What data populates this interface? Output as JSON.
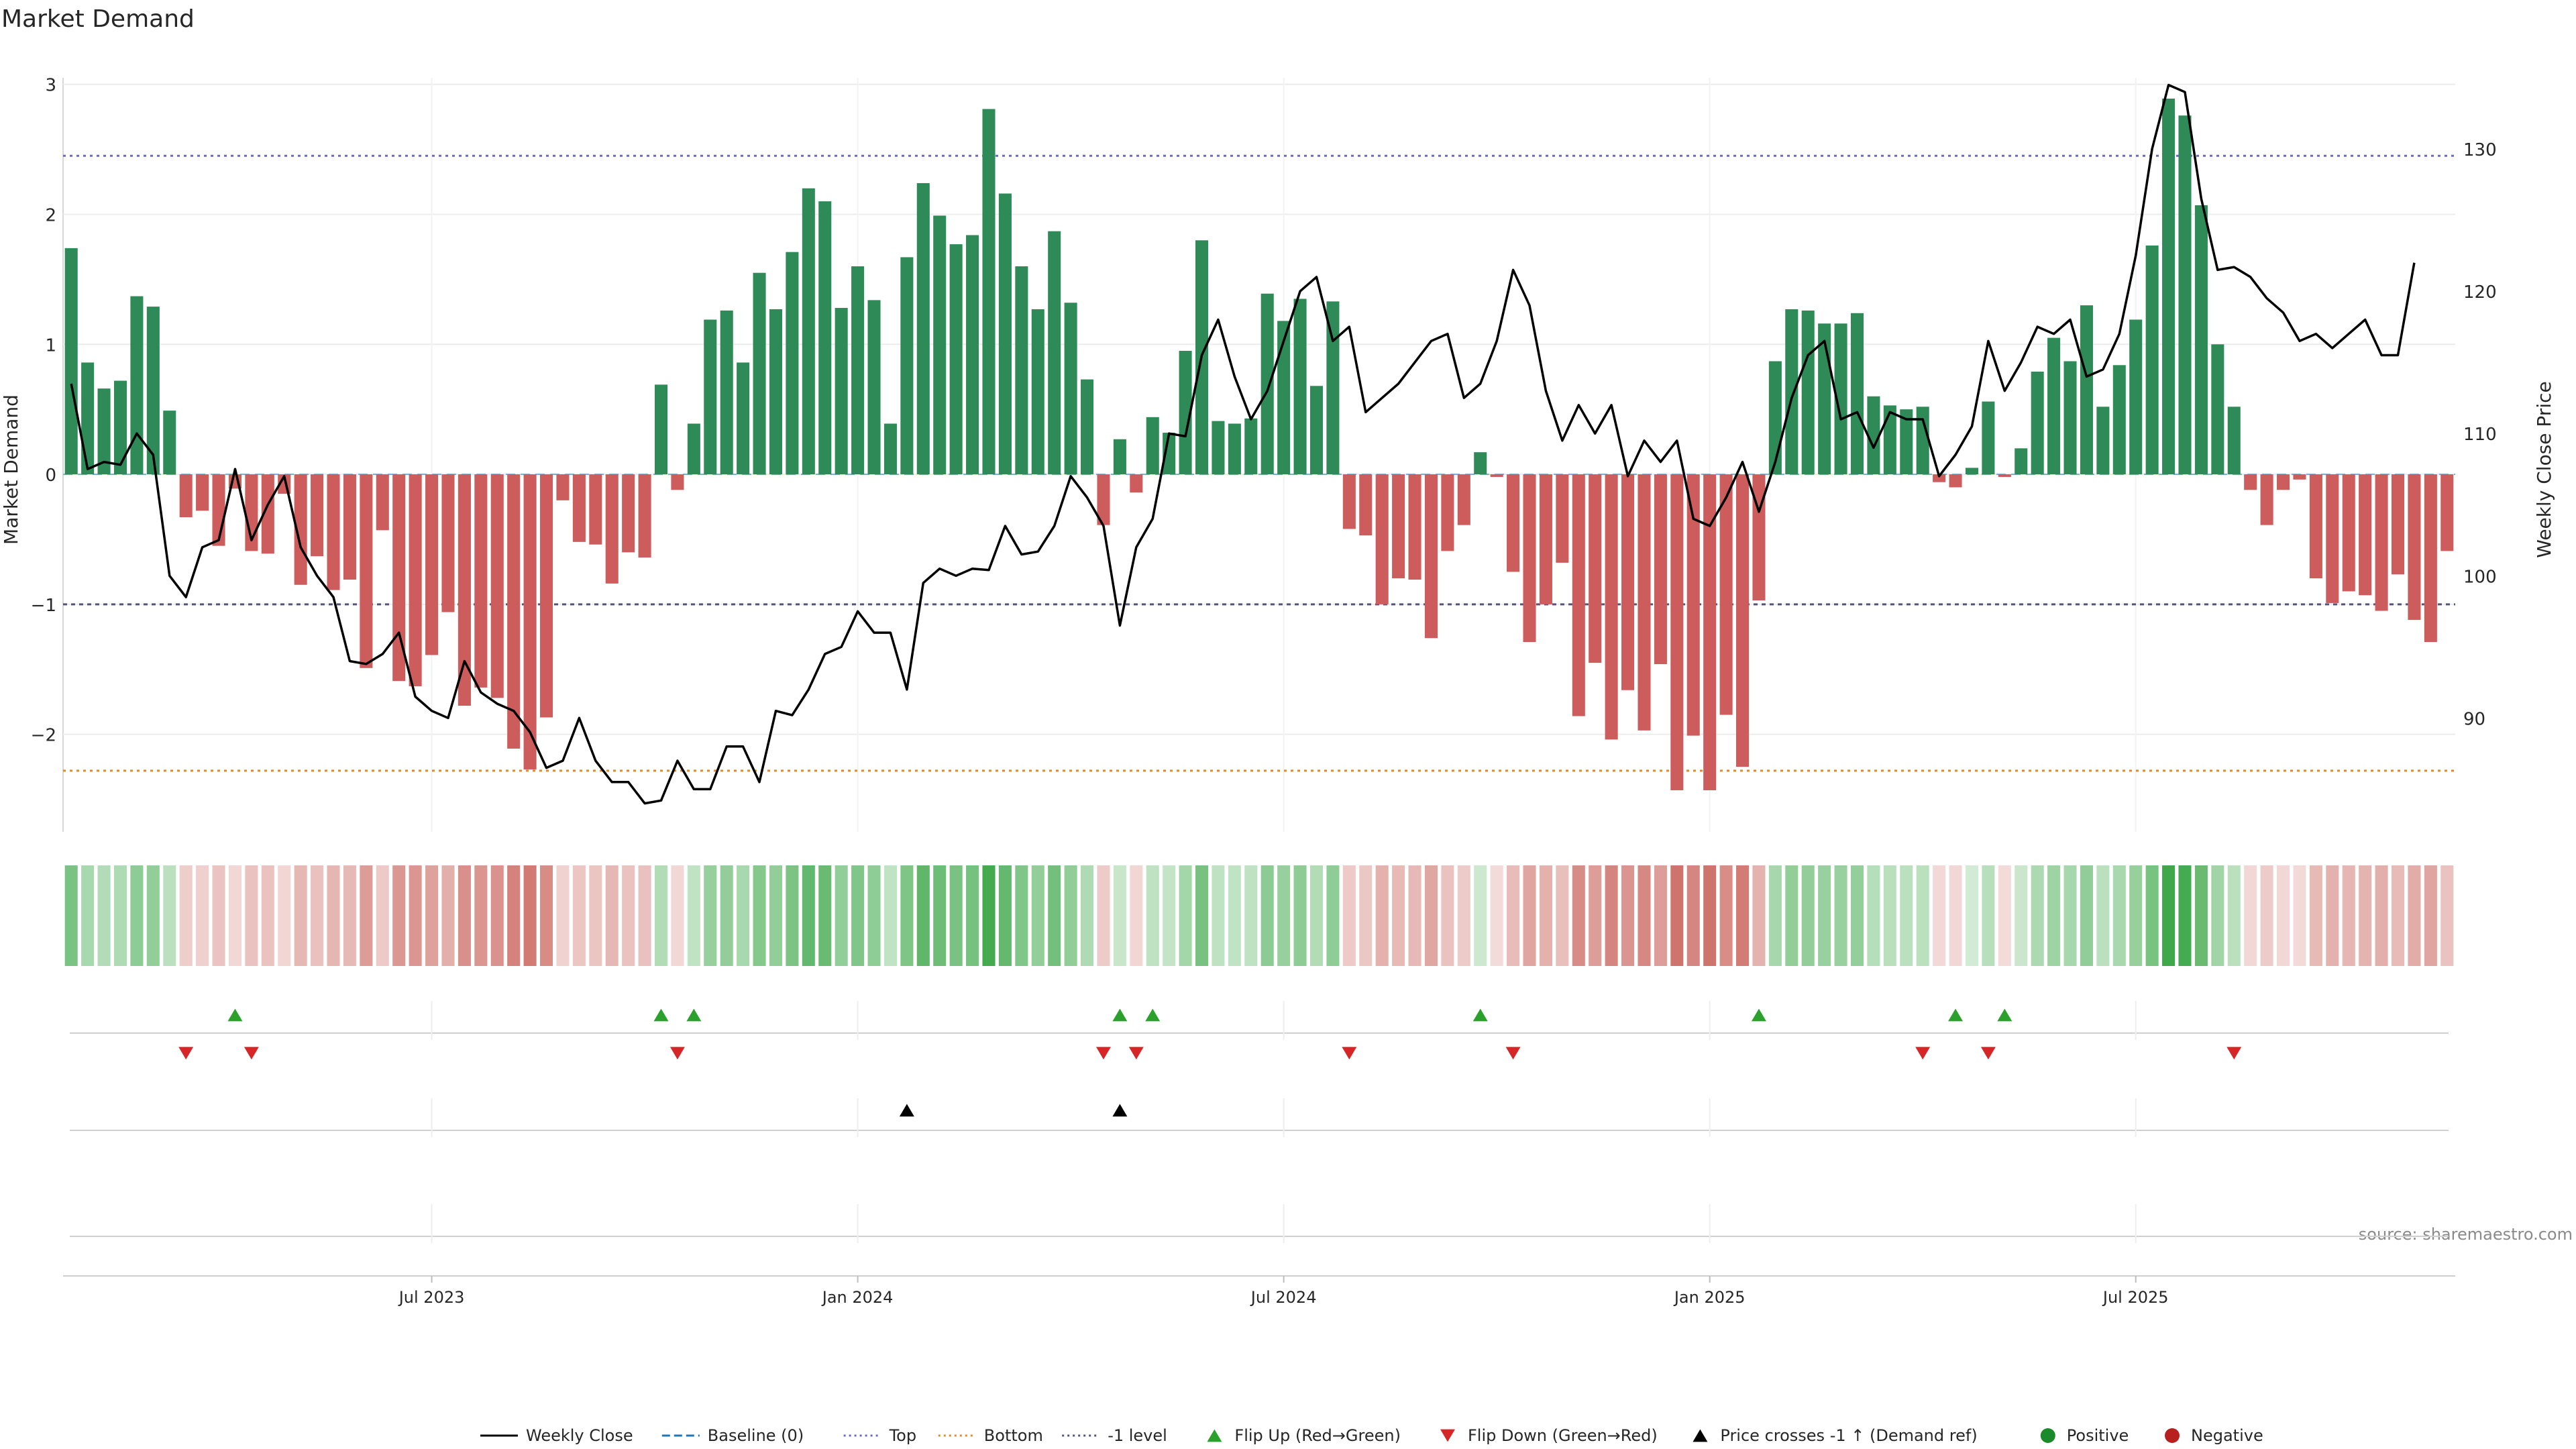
{
  "chart_data": {
    "type": "bar",
    "title": "Market Demand",
    "ylabel_left": "Market Demand",
    "ylabel_right": "Weekly Close Price",
    "source": "source: sharemaestro.com",
    "y_ticks_left": [
      {
        "value": 3,
        "label": "3"
      },
      {
        "value": 2,
        "label": "2"
      },
      {
        "value": 1,
        "label": "1"
      },
      {
        "value": 0,
        "label": "0"
      },
      {
        "value": -1,
        "label": "−1"
      },
      {
        "value": -2,
        "label": "−2"
      }
    ],
    "y_ticks_right": [
      {
        "value": 130,
        "label": "130"
      },
      {
        "value": 120,
        "label": "120"
      },
      {
        "value": 110,
        "label": "110"
      },
      {
        "value": 100,
        "label": "100"
      },
      {
        "value": 90,
        "label": "90"
      }
    ],
    "x_ticks": [
      {
        "index": 22,
        "label": "Jul 2023"
      },
      {
        "index": 48,
        "label": "Jan 2024"
      },
      {
        "index": 74,
        "label": "Jul 2024"
      },
      {
        "index": 100,
        "label": "Jan 2025"
      },
      {
        "index": 126,
        "label": "Jul 2025"
      }
    ],
    "ylim_left": [
      -2.75,
      3.05
    ],
    "ylim_right": [
      82,
      135
    ],
    "reference_lines": {
      "top": 2.45,
      "bottom": -2.28,
      "minus_one": -1.0
    },
    "demand": [
      1.74,
      0.86,
      0.66,
      0.72,
      1.37,
      1.29,
      0.49,
      -0.33,
      -0.28,
      -0.55,
      -0.11,
      -0.59,
      -0.61,
      -0.15,
      -0.85,
      -0.63,
      -0.89,
      -0.81,
      -1.49,
      -0.43,
      -1.59,
      -1.63,
      -1.39,
      -1.06,
      -1.78,
      -1.64,
      -1.72,
      -2.11,
      -2.27,
      -1.87,
      -0.2,
      -0.52,
      -0.54,
      -0.84,
      -0.6,
      -0.64,
      0.69,
      -0.12,
      0.39,
      1.19,
      1.26,
      0.86,
      1.55,
      1.27,
      1.71,
      2.2,
      2.1,
      1.28,
      1.6,
      1.34,
      0.39,
      1.67,
      2.24,
      1.99,
      1.77,
      1.84,
      2.81,
      2.16,
      1.6,
      1.27,
      1.87,
      1.32,
      0.73,
      -0.39,
      0.27,
      -0.14,
      0.44,
      0.32,
      0.95,
      1.8,
      0.41,
      0.39,
      0.43,
      1.39,
      1.18,
      1.35,
      0.68,
      1.33,
      -0.42,
      -0.47,
      -1.0,
      -0.8,
      -0.81,
      -1.26,
      -0.59,
      -0.39,
      0.17,
      -0.02,
      -0.75,
      -1.29,
      -1.0,
      -0.68,
      -1.86,
      -1.45,
      -2.04,
      -1.66,
      -1.97,
      -1.46,
      -2.43,
      -2.01,
      -2.43,
      -1.85,
      -2.25,
      -0.97,
      0.87,
      1.27,
      1.26,
      1.16,
      1.16,
      1.24,
      0.6,
      0.53,
      0.5,
      0.52,
      -0.06,
      -0.1,
      0.05,
      0.56,
      -0.02,
      0.2,
      0.79,
      1.05,
      0.87,
      1.3,
      0.52,
      0.84,
      1.19,
      1.76,
      2.89,
      2.76,
      2.07,
      1.0,
      0.52,
      -0.12,
      -0.39,
      -0.12,
      -0.04,
      -0.8,
      -0.99,
      -0.9,
      -0.93,
      -1.05,
      -0.77,
      -1.12,
      -1.29,
      -0.59
    ],
    "close": [
      113.5,
      107.5,
      108.0,
      107.8,
      110.0,
      108.5,
      100.0,
      98.5,
      102.0,
      102.5,
      107.5,
      102.5,
      105.0,
      107.0,
      102.0,
      100.0,
      98.5,
      94.0,
      93.8,
      94.5,
      96.0,
      91.5,
      90.5,
      90.0,
      94.0,
      91.8,
      91.0,
      90.5,
      89.0,
      86.5,
      87.0,
      90.0,
      87.0,
      85.5,
      85.5,
      84.0,
      84.2,
      87.0,
      85.0,
      85.0,
      88.0,
      88.0,
      85.5,
      90.5,
      90.2,
      92.0,
      94.5,
      95.0,
      97.5,
      96.0,
      96.0,
      92.0,
      99.5,
      100.5,
      100.0,
      100.5,
      100.4,
      103.5,
      101.5,
      101.7,
      103.5,
      107.0,
      105.5,
      103.5,
      96.5,
      102.0,
      104.0,
      110.0,
      109.8,
      115.5,
      118.0,
      114.0,
      111.0,
      113.0,
      116.5,
      120.0,
      121.0,
      116.5,
      117.5,
      111.5,
      112.5,
      113.5,
      115.0,
      116.5,
      117.0,
      112.5,
      113.5,
      116.5,
      121.5,
      119.0,
      113.0,
      109.5,
      112.0,
      110.0,
      112.0,
      107.0,
      109.5,
      108.0,
      109.5,
      104.0,
      103.5,
      105.5,
      108.0,
      104.5,
      108.0,
      112.5,
      115.5,
      116.5,
      111.0,
      111.5,
      109.0,
      111.5,
      111.0,
      111.0,
      107.0,
      108.5,
      110.5,
      116.5,
      113.0,
      115.0,
      117.5,
      117.0,
      118.0,
      114.0,
      114.5,
      117.0,
      122.5,
      130.0,
      134.5,
      134.0,
      126.5,
      121.5,
      121.7,
      121.0,
      119.5,
      118.5,
      116.5,
      117.0,
      116.0,
      117.0,
      118.0,
      115.5,
      115.5,
      122.0
    ],
    "flip_up_indices": [
      10,
      36,
      38,
      64,
      66,
      86,
      103,
      115,
      118
    ],
    "flip_down_indices": [
      7,
      11,
      37,
      63,
      65,
      78,
      88,
      113,
      117,
      132
    ],
    "price_cross_indices": [
      51,
      64
    ],
    "legend": [
      {
        "label": "Weekly Close",
        "kind": "line-solid",
        "color": "#000000"
      },
      {
        "label": "Baseline (0)",
        "kind": "line-dashed",
        "color": "#1f77b4"
      },
      {
        "label": "Top",
        "kind": "line-dotted",
        "color": "#6a6ac0"
      },
      {
        "label": "Bottom",
        "kind": "line-dotted",
        "color": "#e08a2a"
      },
      {
        "label": "-1 level",
        "kind": "line-dotted",
        "color": "#555577"
      },
      {
        "label": "Flip Up (Red→Green)",
        "kind": "tri-up",
        "color": "#2ca02c"
      },
      {
        "label": "Flip Down (Green→Red)",
        "kind": "tri-down",
        "color": "#d62728"
      },
      {
        "label": "Price crosses -1 ↑ (Demand ref)",
        "kind": "tri-up",
        "color": "#000000"
      },
      {
        "label": "Positive",
        "kind": "circle",
        "color": "#1a8a2a"
      },
      {
        "label": "Negative",
        "kind": "circle",
        "color": "#b82020"
      }
    ],
    "colors": {
      "positive_bar": "#2e8b57",
      "negative_bar": "#cd5c5c",
      "close_line": "#000000",
      "top_line": "#6a6ac0",
      "bottom_line": "#e08a2a",
      "minus_one_line": "#555577",
      "baseline": "#1f77b4",
      "grid": "#ececec",
      "flip_up": "#2ca02c",
      "flip_down": "#d62728",
      "price_cross": "#000000"
    }
  }
}
